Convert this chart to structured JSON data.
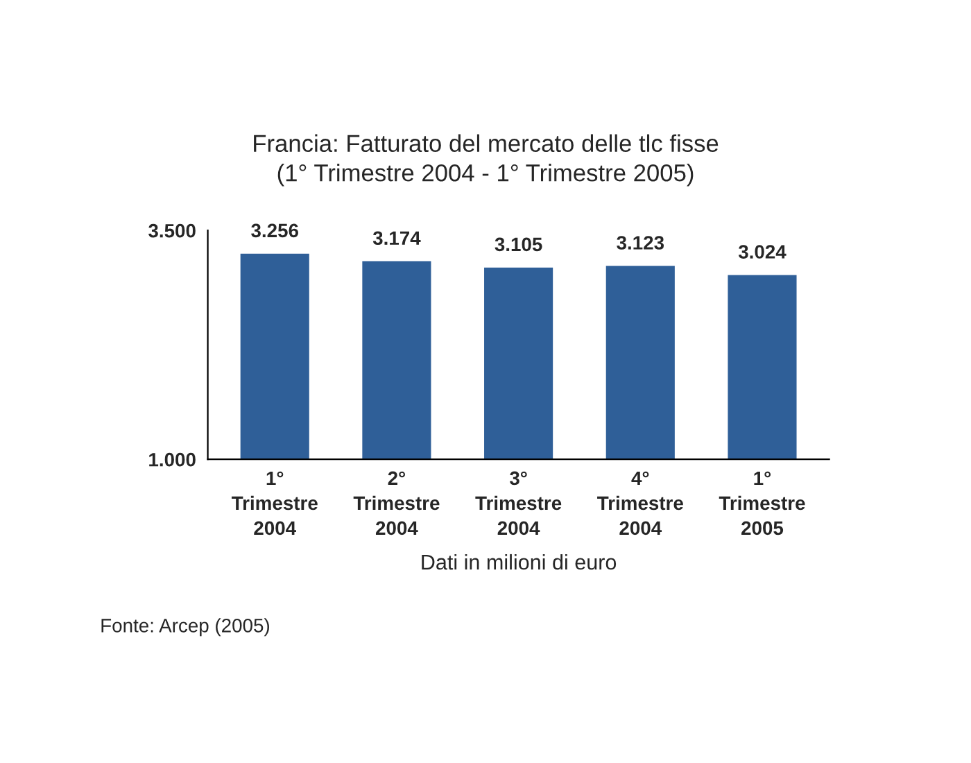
{
  "chart_data": {
    "type": "bar",
    "title": "Francia: Fatturato del mercato delle tlc fisse\n(1° Trimestre 2004 - 1° Trimestre 2005)",
    "categories": [
      "1°\nTrimestre\n2004",
      "2°\nTrimestre\n2004",
      "3°\nTrimestre\n2004",
      "4°\nTrimestre\n2004",
      "1°\nTrimestre\n2005"
    ],
    "values": [
      3256,
      3174,
      3105,
      3123,
      3024
    ],
    "value_labels": [
      "3.256",
      "3.174",
      "3.105",
      "3.123",
      "3.024"
    ],
    "color": "#2f5f98",
    "xlabel": "Dati in milioni di euro",
    "ylim": [
      1000,
      3500
    ],
    "yticks": [
      {
        "value": 1000,
        "label": "1.000"
      },
      {
        "value": 3500,
        "label": "3.500"
      }
    ],
    "grid": false,
    "legend": false,
    "annotations": [
      "Fonte: Arcep (2005)"
    ]
  }
}
